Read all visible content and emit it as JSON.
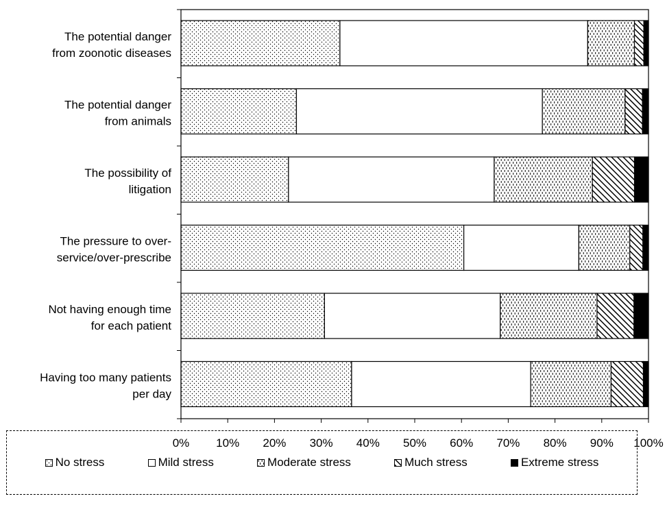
{
  "chart_data": {
    "type": "bar",
    "orientation": "horizontal",
    "stacked": true,
    "percent": true,
    "categories": [
      "The potential danger from zoonotic diseases",
      "The potential danger from animals",
      "The possibility of litigation",
      "The pressure to over-service/over-prescribe",
      "Not having enough time for each patient",
      "Having too many patients per day"
    ],
    "category_lines": [
      [
        "The potential danger",
        "from zoonotic diseases"
      ],
      [
        "The potential danger",
        "from animals"
      ],
      [
        "The possibility of",
        "litigation"
      ],
      [
        "The pressure to over-",
        "service/over-prescribe"
      ],
      [
        "Not having enough time",
        "for each patient"
      ],
      [
        "Having too many patients",
        "per day"
      ]
    ],
    "series": [
      {
        "name": "No stress",
        "pattern": "dots",
        "values": [
          34,
          24.7,
          23,
          60.5,
          30.7,
          36.5
        ]
      },
      {
        "name": "Mild stress",
        "pattern": "none",
        "values": [
          53,
          52.6,
          44,
          24.6,
          37.6,
          38.3
        ]
      },
      {
        "name": "Moderate stress",
        "pattern": "dashes",
        "values": [
          10,
          17.7,
          21,
          10.9,
          20.7,
          17.2
        ]
      },
      {
        "name": "Much stress",
        "pattern": "diagonal",
        "values": [
          2,
          3.7,
          9,
          2.8,
          7.9,
          6.9
        ]
      },
      {
        "name": "Extreme stress",
        "pattern": "solid",
        "values": [
          1,
          1.3,
          3,
          1.2,
          3.1,
          1.1
        ]
      }
    ],
    "xlim": [
      0,
      100
    ],
    "xticks": [
      "0%",
      "10%",
      "20%",
      "30%",
      "40%",
      "50%",
      "60%",
      "70%",
      "80%",
      "90%",
      "100%"
    ],
    "legend_position": "bottom",
    "grid": false
  }
}
